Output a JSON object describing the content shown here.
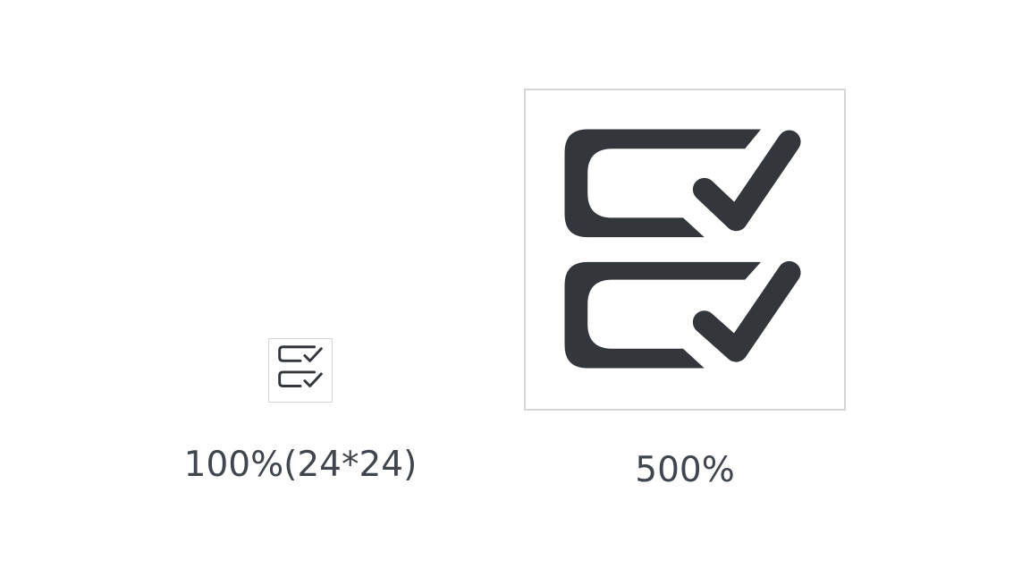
{
  "icon": {
    "name": "checklist-icon",
    "color": "#33363b",
    "frame_color": "#d6d6d8"
  },
  "previews": {
    "small_label": "100%(24*24)",
    "large_label": "500%"
  }
}
